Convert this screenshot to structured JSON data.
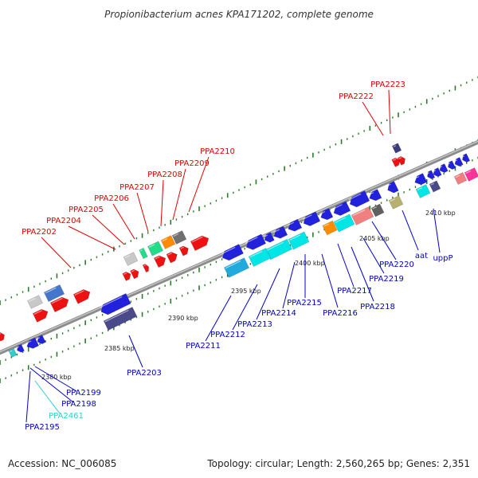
{
  "title": "Propionibacterium acnes KPA171202, complete genome",
  "footer": {
    "accession": "Accession: NC_006085",
    "summary": "Topology: circular; Length: 2,560,265 bp; Genes: 2,351"
  },
  "colors": {
    "axis": "#8c8c8c",
    "forward_label": "#e00000",
    "reverse_label": "#0000cc",
    "rna_label": "#33cccc",
    "tick": "#2a7a2a"
  },
  "scale": {
    "ticks": [
      {
        "label": "2380 kbp"
      },
      {
        "label": "2385 kbp"
      },
      {
        "label": "2390 kbp"
      },
      {
        "label": "2395 kbp"
      },
      {
        "label": "2400 kbp"
      },
      {
        "label": "2405 kbp"
      },
      {
        "label": "2410 kbp"
      }
    ]
  },
  "gene_labels": [
    {
      "text": "PPA2223",
      "color": "#e00000"
    },
    {
      "text": "PPA2222",
      "color": "#e00000"
    },
    {
      "text": "PPA2210",
      "color": "#e00000"
    },
    {
      "text": "PPA2209",
      "color": "#e00000"
    },
    {
      "text": "PPA2208",
      "color": "#e00000"
    },
    {
      "text": "PPA2207",
      "color": "#e00000"
    },
    {
      "text": "PPA2206",
      "color": "#e00000"
    },
    {
      "text": "PPA2205",
      "color": "#e00000"
    },
    {
      "text": "PPA2204",
      "color": "#e00000"
    },
    {
      "text": "PPA2202",
      "color": "#e00000"
    },
    {
      "text": "PPA2211",
      "color": "#0000cc"
    },
    {
      "text": "PPA2212",
      "color": "#0000cc"
    },
    {
      "text": "PPA2213",
      "color": "#0000cc"
    },
    {
      "text": "PPA2214",
      "color": "#0000cc"
    },
    {
      "text": "PPA2215",
      "color": "#0000cc"
    },
    {
      "text": "PPA2216",
      "color": "#0000cc"
    },
    {
      "text": "PPA2217",
      "color": "#0000cc"
    },
    {
      "text": "PPA2218",
      "color": "#0000cc"
    },
    {
      "text": "PPA2219",
      "color": "#0000cc"
    },
    {
      "text": "PPA2220",
      "color": "#0000cc"
    },
    {
      "text": "aat",
      "color": "#0000cc"
    },
    {
      "text": "uppP",
      "color": "#0000cc"
    },
    {
      "text": "PPA2203",
      "color": "#0000cc"
    },
    {
      "text": "PPA2199",
      "color": "#0000cc"
    },
    {
      "text": "PPA2198",
      "color": "#0000cc"
    },
    {
      "text": "PPA2461",
      "color": "#33cccc"
    },
    {
      "text": "PPA2195",
      "color": "#0000cc"
    }
  ],
  "features": [
    {
      "name": "PPA2223",
      "color": "#3c3c7c"
    },
    {
      "name": "PPA2222",
      "color": "#ee1111"
    },
    {
      "name": "PPA2210",
      "color": "#ee1111"
    },
    {
      "name": "PPA2209",
      "color": "#707070"
    },
    {
      "name": "PPA2208",
      "color": "#ff8c00"
    },
    {
      "name": "PPA2207",
      "color": "#22dd88"
    },
    {
      "name": "PPA2206",
      "color": "#22dd88"
    },
    {
      "name": "PPA2205",
      "color": "#c8c8c8"
    },
    {
      "name": "PPA2204",
      "color": "#ee1111"
    },
    {
      "name": "PPA2202",
      "color": "#ee1111"
    },
    {
      "name": "PPA2211",
      "color": "#22aadd"
    },
    {
      "name": "PPA2212",
      "color": "#00e5e5"
    },
    {
      "name": "PPA2216",
      "color": "#ff8c00"
    },
    {
      "name": "PPA2217",
      "color": "#00e5e5"
    },
    {
      "name": "PPA2218",
      "color": "#f08080"
    },
    {
      "name": "PPA2219",
      "color": "#606060"
    },
    {
      "name": "aat",
      "color": "#b8b070"
    },
    {
      "name": "uppP",
      "color": "#4a4a8a"
    },
    {
      "name": "PPA2203",
      "color": "#4a4a8a"
    }
  ]
}
